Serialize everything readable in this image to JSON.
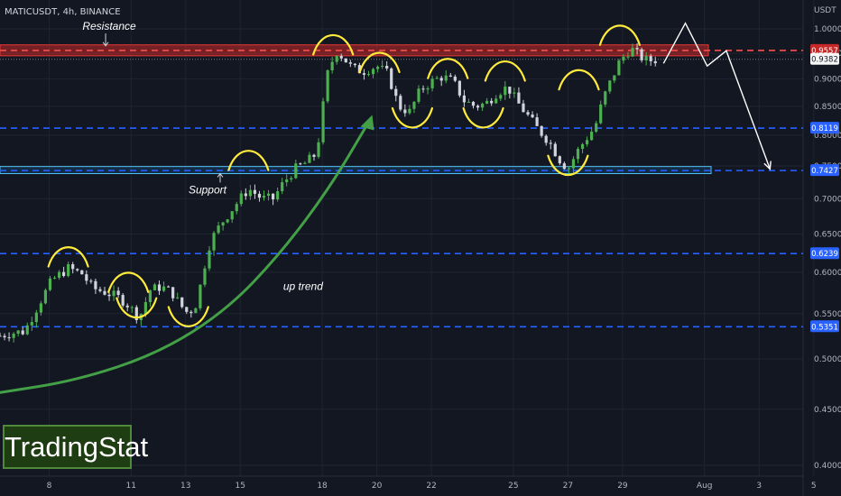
{
  "header": {
    "symbol_line": "MATICUSDT, 4h, BINANCE"
  },
  "axis": {
    "unit": "USDT"
  },
  "brand": {
    "name": "TradingStat"
  },
  "colors": {
    "background": "#131722",
    "bull": "#4caf50",
    "bear": "#d1d4dc",
    "resistance_zone": "#c62828",
    "support_zone": "#1e88e5",
    "level_blue": "#2962ff",
    "level_red": "#ef5350",
    "pattern_marker": "#ffeb3b",
    "trend_arrow": "#43a047",
    "projection": "#ffffff"
  },
  "chart_data": {
    "type": "candlestick",
    "timeframe": "4h",
    "y_axis": {
      "scale": "log",
      "range": [
        0.4,
        1.04
      ],
      "ticks": [
        "1.0000",
        "0.9500",
        "0.9000",
        "0.8500",
        "0.8000",
        "0.7500",
        "0.7000",
        "0.6500",
        "0.6000",
        "0.5500",
        "0.5000",
        "0.4500",
        "0.4000"
      ]
    },
    "x_axis": {
      "range_days": [
        6.2,
        37
      ],
      "ticks": [
        {
          "label": "8",
          "day": 8
        },
        {
          "label": "11",
          "day": 11
        },
        {
          "label": "13",
          "day": 13
        },
        {
          "label": "15",
          "day": 15
        },
        {
          "label": "18",
          "day": 18
        },
        {
          "label": "20",
          "day": 20
        },
        {
          "label": "22",
          "day": 22
        },
        {
          "label": "25",
          "day": 25
        },
        {
          "label": "27",
          "day": 27
        },
        {
          "label": "29",
          "day": 29
        },
        {
          "label": "Aug",
          "day": 32
        },
        {
          "label": "3",
          "day": 34
        },
        {
          "label": "5",
          "day": 36
        }
      ]
    },
    "levels": [
      {
        "price": 0.9557,
        "label": "0.9557",
        "style": "red-dashed"
      },
      {
        "price": 0.9382,
        "label": "0.9382",
        "style": "last-price"
      },
      {
        "price": 0.8119,
        "label": "0.8119",
        "style": "blue-dashed"
      },
      {
        "price": 0.7427,
        "label": "0.7427",
        "style": "blue-dashed"
      },
      {
        "price": 0.6239,
        "label": "0.6239",
        "style": "blue-dashed"
      },
      {
        "price": 0.5351,
        "label": "0.5351",
        "style": "blue-dashed"
      }
    ],
    "zones": [
      {
        "name": "Resistance",
        "low": 0.945,
        "high": 0.967,
        "color": "red"
      },
      {
        "name": "Support",
        "low": 0.738,
        "high": 0.749,
        "color": "blue"
      }
    ],
    "annotations": [
      {
        "text": "Resistance",
        "day": 10.2,
        "price": 0.998,
        "arrow_to_price": 0.965
      },
      {
        "text": "Support",
        "day": 13.8,
        "price": 0.708,
        "arrow_to_price": 0.738
      },
      {
        "text": "up trend",
        "day": 17.3,
        "price": 0.578
      }
    ],
    "trend_curve": {
      "points": [
        [
          6.2,
          0.466
        ],
        [
          9,
          0.478
        ],
        [
          12,
          0.506
        ],
        [
          14.5,
          0.554
        ],
        [
          16.5,
          0.625
        ],
        [
          18.3,
          0.718
        ],
        [
          19.7,
          0.822
        ]
      ]
    },
    "projection_path": [
      [
        30.5,
        0.93
      ],
      [
        31.3,
        1.012
      ],
      [
        32.1,
        0.925
      ],
      [
        32.8,
        0.955
      ],
      [
        34.4,
        0.745
      ]
    ],
    "pattern_marks": [
      {
        "type": "top",
        "day": 8.7,
        "price": 0.633
      },
      {
        "type": "top",
        "day": 10.9,
        "price": 0.6
      },
      {
        "type": "bottom",
        "day": 11.2,
        "price": 0.545
      },
      {
        "type": "bottom",
        "day": 13.1,
        "price": 0.535
      },
      {
        "type": "top",
        "day": 15.3,
        "price": 0.775
      },
      {
        "type": "top",
        "day": 18.4,
        "price": 0.988
      },
      {
        "type": "top",
        "day": 20.1,
        "price": 0.952
      },
      {
        "type": "bottom",
        "day": 21.3,
        "price": 0.812
      },
      {
        "type": "top",
        "day": 22.6,
        "price": 0.94
      },
      {
        "type": "bottom",
        "day": 23.9,
        "price": 0.812
      },
      {
        "type": "top",
        "day": 24.7,
        "price": 0.935
      },
      {
        "type": "bottom",
        "day": 27.0,
        "price": 0.735
      },
      {
        "type": "top",
        "day": 27.4,
        "price": 0.918
      },
      {
        "type": "top",
        "day": 28.9,
        "price": 1.008
      }
    ],
    "price_path": [
      [
        6.2,
        0.525
      ],
      [
        6.6,
        0.528
      ],
      [
        7.1,
        0.53
      ],
      [
        7.6,
        0.56
      ],
      [
        8.1,
        0.59
      ],
      [
        8.7,
        0.605
      ],
      [
        9.2,
        0.598
      ],
      [
        9.6,
        0.58
      ],
      [
        10.1,
        0.575
      ],
      [
        10.6,
        0.568
      ],
      [
        10.9,
        0.56
      ],
      [
        11.1,
        0.552
      ],
      [
        11.3,
        0.545
      ],
      [
        11.7,
        0.578
      ],
      [
        12.1,
        0.582
      ],
      [
        12.5,
        0.575
      ],
      [
        12.8,
        0.56
      ],
      [
        13.1,
        0.55
      ],
      [
        13.4,
        0.562
      ],
      [
        13.7,
        0.61
      ],
      [
        13.9,
        0.64
      ],
      [
        14.3,
        0.665
      ],
      [
        14.8,
        0.69
      ],
      [
        15.3,
        0.715
      ],
      [
        15.8,
        0.7
      ],
      [
        16.2,
        0.7
      ],
      [
        16.6,
        0.725
      ],
      [
        17.0,
        0.745
      ],
      [
        17.4,
        0.755
      ],
      [
        17.8,
        0.77
      ],
      [
        18.0,
        0.84
      ],
      [
        18.2,
        0.91
      ],
      [
        18.5,
        0.955
      ],
      [
        18.8,
        0.94
      ],
      [
        19.1,
        0.92
      ],
      [
        19.5,
        0.915
      ],
      [
        20.0,
        0.925
      ],
      [
        20.4,
        0.91
      ],
      [
        20.8,
        0.85
      ],
      [
        21.2,
        0.84
      ],
      [
        21.6,
        0.88
      ],
      [
        22.0,
        0.895
      ],
      [
        22.4,
        0.905
      ],
      [
        22.8,
        0.895
      ],
      [
        23.2,
        0.86
      ],
      [
        23.6,
        0.85
      ],
      [
        24.0,
        0.855
      ],
      [
        24.4,
        0.875
      ],
      [
        24.8,
        0.885
      ],
      [
        25.1,
        0.86
      ],
      [
        25.5,
        0.835
      ],
      [
        25.9,
        0.81
      ],
      [
        26.3,
        0.79
      ],
      [
        26.7,
        0.76
      ],
      [
        27.0,
        0.745
      ],
      [
        27.3,
        0.77
      ],
      [
        27.6,
        0.79
      ],
      [
        28.0,
        0.815
      ],
      [
        28.3,
        0.865
      ],
      [
        28.6,
        0.9
      ],
      [
        28.9,
        0.935
      ],
      [
        29.3,
        0.96
      ],
      [
        29.6,
        0.945
      ],
      [
        29.9,
        0.935
      ],
      [
        30.3,
        0.938
      ]
    ]
  }
}
